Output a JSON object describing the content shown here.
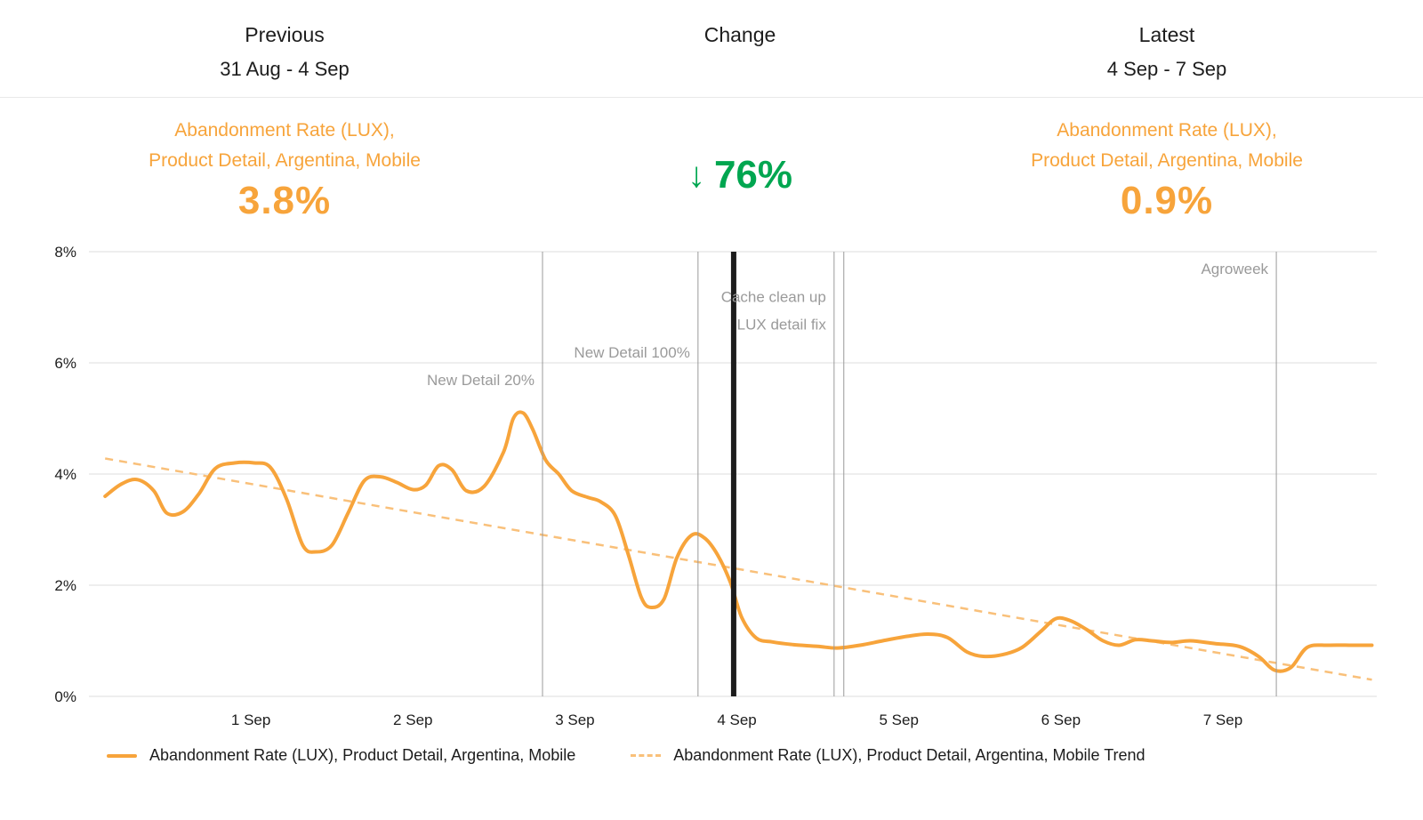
{
  "header": {
    "previous": {
      "title": "Previous",
      "range": "31 Aug - 4 Sep"
    },
    "change": {
      "title": "Change"
    },
    "latest": {
      "title": "Latest",
      "range": "4 Sep - 7 Sep"
    }
  },
  "metrics": {
    "previous": {
      "label_lines": [
        "Abandonment Rate (LUX),",
        "Product Detail, Argentina, Mobile"
      ],
      "value": "3.8%"
    },
    "change": {
      "arrow": "↓",
      "value": "76%"
    },
    "latest": {
      "label_lines": [
        "Abandonment Rate (LUX),",
        "Product Detail, Argentina, Mobile"
      ],
      "value": "0.9%"
    }
  },
  "colors": {
    "orange": "#F7A43B",
    "trend": "#F9C07A",
    "green": "#00A650",
    "grid": "#DCDCDC",
    "text": "#1D1D1D",
    "event_line": "#9A9A9A",
    "event_thick": "#1C1C1C",
    "divider": "#E9E9E9"
  },
  "chart_data": {
    "type": "line",
    "xlabel": "",
    "ylabel": "",
    "xlim": [
      0,
      7.95
    ],
    "ylim": [
      0,
      8
    ],
    "grid": true,
    "legend_position": "bottom",
    "yticks": [
      {
        "value": 0,
        "label": "0%"
      },
      {
        "value": 2,
        "label": "2%"
      },
      {
        "value": 4,
        "label": "4%"
      },
      {
        "value": 6,
        "label": "6%"
      },
      {
        "value": 8,
        "label": "8%"
      }
    ],
    "xticks": [
      {
        "day": 1,
        "label": "1 Sep"
      },
      {
        "day": 2,
        "label": "2 Sep"
      },
      {
        "day": 3,
        "label": "3 Sep"
      },
      {
        "day": 4,
        "label": "4 Sep"
      },
      {
        "day": 5,
        "label": "5 Sep"
      },
      {
        "day": 6,
        "label": "6 Sep"
      },
      {
        "day": 7,
        "label": "7 Sep"
      }
    ],
    "series": [
      {
        "name": "Abandonment Rate (LUX), Product Detail, Argentina, Mobile",
        "style": "solid",
        "unit": "%",
        "points": [
          [
            0.1,
            3.6
          ],
          [
            0.2,
            3.82
          ],
          [
            0.3,
            3.9
          ],
          [
            0.4,
            3.7
          ],
          [
            0.48,
            3.3
          ],
          [
            0.58,
            3.32
          ],
          [
            0.68,
            3.65
          ],
          [
            0.78,
            4.1
          ],
          [
            0.9,
            4.2
          ],
          [
            1.02,
            4.2
          ],
          [
            1.12,
            4.12
          ],
          [
            1.22,
            3.55
          ],
          [
            1.32,
            2.72
          ],
          [
            1.4,
            2.6
          ],
          [
            1.5,
            2.72
          ],
          [
            1.6,
            3.3
          ],
          [
            1.7,
            3.88
          ],
          [
            1.8,
            3.95
          ],
          [
            1.9,
            3.85
          ],
          [
            2.0,
            3.72
          ],
          [
            2.08,
            3.8
          ],
          [
            2.16,
            4.15
          ],
          [
            2.24,
            4.08
          ],
          [
            2.33,
            3.7
          ],
          [
            2.44,
            3.78
          ],
          [
            2.56,
            4.4
          ],
          [
            2.62,
            5.0
          ],
          [
            2.68,
            5.1
          ],
          [
            2.74,
            4.8
          ],
          [
            2.82,
            4.25
          ],
          [
            2.9,
            4.0
          ],
          [
            2.98,
            3.7
          ],
          [
            3.08,
            3.58
          ],
          [
            3.16,
            3.5
          ],
          [
            3.25,
            3.25
          ],
          [
            3.33,
            2.55
          ],
          [
            3.41,
            1.78
          ],
          [
            3.47,
            1.6
          ],
          [
            3.55,
            1.75
          ],
          [
            3.63,
            2.5
          ],
          [
            3.72,
            2.9
          ],
          [
            3.8,
            2.85
          ],
          [
            3.88,
            2.55
          ],
          [
            3.96,
            2.05
          ],
          [
            4.03,
            1.42
          ],
          [
            4.12,
            1.05
          ],
          [
            4.22,
            0.98
          ],
          [
            4.35,
            0.93
          ],
          [
            4.5,
            0.9
          ],
          [
            4.62,
            0.87
          ],
          [
            4.76,
            0.92
          ],
          [
            4.9,
            1.0
          ],
          [
            5.05,
            1.08
          ],
          [
            5.18,
            1.12
          ],
          [
            5.3,
            1.06
          ],
          [
            5.42,
            0.8
          ],
          [
            5.52,
            0.72
          ],
          [
            5.64,
            0.75
          ],
          [
            5.76,
            0.88
          ],
          [
            5.88,
            1.18
          ],
          [
            5.97,
            1.4
          ],
          [
            6.06,
            1.36
          ],
          [
            6.16,
            1.2
          ],
          [
            6.26,
            1.0
          ],
          [
            6.36,
            0.92
          ],
          [
            6.46,
            1.02
          ],
          [
            6.56,
            1.0
          ],
          [
            6.68,
            0.97
          ],
          [
            6.8,
            1.0
          ],
          [
            6.95,
            0.95
          ],
          [
            7.1,
            0.9
          ],
          [
            7.22,
            0.72
          ],
          [
            7.32,
            0.47
          ],
          [
            7.42,
            0.52
          ],
          [
            7.52,
            0.88
          ],
          [
            7.65,
            0.92
          ],
          [
            7.8,
            0.92
          ],
          [
            7.92,
            0.92
          ]
        ]
      },
      {
        "name": "Abandonment Rate (LUX), Product Detail, Argentina, Mobile Trend",
        "style": "dashed",
        "unit": "%",
        "points": [
          [
            0.1,
            4.28
          ],
          [
            7.92,
            0.3
          ]
        ]
      }
    ],
    "events": [
      {
        "day": 2.8,
        "thick": false,
        "labels": [
          {
            "text": "New Detail 20%",
            "pct": 5.6
          }
        ]
      },
      {
        "day": 3.76,
        "thick": false,
        "labels": [
          {
            "text": "New Detail 100%",
            "pct": 6.1
          }
        ]
      },
      {
        "day": 3.98,
        "thick": true,
        "labels": []
      },
      {
        "day": 4.6,
        "thick": false,
        "labels": [
          {
            "text": "Cache clean up",
            "pct": 7.1
          },
          {
            "text": "LUX detail fix",
            "pct": 6.6
          }
        ]
      },
      {
        "day": 4.66,
        "thick": false,
        "labels": []
      },
      {
        "day": 7.33,
        "thick": false,
        "labels": [
          {
            "text": "Agroweek",
            "pct": 7.6
          }
        ]
      }
    ],
    "legend": [
      {
        "label": "Abandonment Rate (LUX), Product Detail, Argentina, Mobile",
        "style": "solid"
      },
      {
        "label": "Abandonment Rate (LUX), Product Detail, Argentina, Mobile Trend",
        "style": "dashed"
      }
    ]
  }
}
